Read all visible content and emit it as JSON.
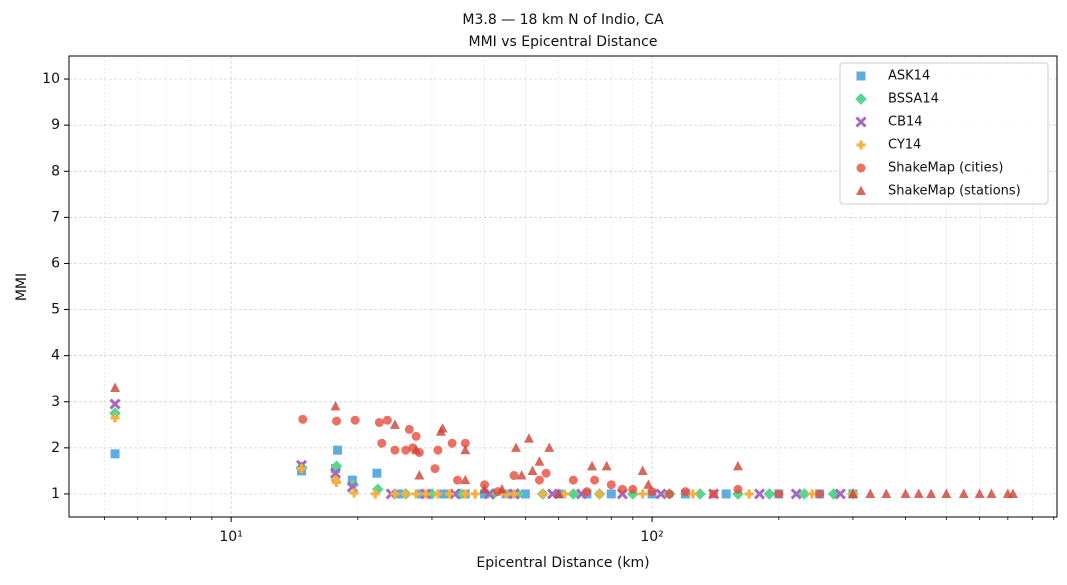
{
  "chart_data": {
    "type": "scatter",
    "title": "M3.8 — 18 km N of Indio, CA",
    "subtitle": "MMI vs Epicentral Distance",
    "x_label": "Epicentral Distance (km)",
    "y_label": "MMI",
    "x_scale": "log",
    "xlim": [
      4.12,
      916
    ],
    "ylim": [
      0.5,
      10.5
    ],
    "xticks": [
      {
        "value": 10,
        "label": "10¹"
      },
      {
        "value": 100,
        "label": "10²"
      }
    ],
    "xminor_ticks": [
      5,
      6,
      7,
      8,
      9,
      20,
      30,
      40,
      50,
      60,
      70,
      80,
      90,
      200,
      300,
      400,
      500,
      600,
      700,
      800,
      900
    ],
    "yticks": [
      1,
      2,
      3,
      4,
      5,
      6,
      7,
      8,
      9,
      10
    ],
    "grid": true,
    "legend": "upper right",
    "series": [
      {
        "name": "ASK14",
        "color": "#5dade2",
        "marker": "square",
        "x": [
          5.3,
          14.7,
          17.7,
          17.9,
          19.4,
          22.2,
          25,
          28,
          32,
          36,
          40,
          45,
          50,
          60,
          70,
          80,
          100,
          120,
          150,
          200,
          250,
          300
        ],
        "y": [
          1.87,
          1.5,
          1.55,
          1.95,
          1.3,
          1.45,
          1,
          1,
          1,
          1,
          1,
          1,
          1,
          1,
          1,
          1,
          1,
          1,
          1,
          1,
          1,
          1
        ]
      },
      {
        "name": "BSSA14",
        "color": "#58d68d",
        "marker": "diamond",
        "x": [
          5.3,
          14.7,
          17.8,
          19.5,
          22.3,
          26,
          30,
          35,
          42,
          48,
          55,
          65,
          75,
          90,
          110,
          130,
          160,
          190,
          230,
          270,
          300
        ],
        "y": [
          2.75,
          1.58,
          1.6,
          1.2,
          1.1,
          1,
          1,
          1,
          1,
          1,
          1,
          1,
          1,
          1,
          1,
          1,
          1,
          1,
          1,
          1,
          1
        ]
      },
      {
        "name": "CB14",
        "color": "#a569bd",
        "marker": "x",
        "x": [
          5.3,
          14.7,
          17.7,
          19.4,
          24,
          29,
          34,
          41,
          47,
          58,
          68,
          85,
          105,
          140,
          180,
          220,
          280
        ],
        "y": [
          2.95,
          1.62,
          1.45,
          1.15,
          1,
          1,
          1,
          1,
          1,
          1,
          1,
          1,
          1,
          1,
          1,
          1,
          1
        ]
      },
      {
        "name": "CY14",
        "color": "#f5b041",
        "marker": "plus",
        "x": [
          5.3,
          14.7,
          17.7,
          17.8,
          19.6,
          22,
          24.5,
          26,
          27.5,
          29,
          31,
          33,
          36,
          38,
          45,
          47,
          55,
          62,
          75,
          95,
          125,
          170,
          240,
          300
        ],
        "y": [
          2.65,
          1.55,
          1.3,
          1.25,
          1.02,
          1,
          1,
          1,
          1,
          1,
          1,
          1,
          1,
          1,
          1,
          1,
          1,
          1,
          1,
          1,
          1,
          1,
          1,
          1
        ]
      },
      {
        "name": "ShakeMap (cities)",
        "color": "#e74c3c",
        "marker": "circle",
        "x": [
          14.8,
          17.8,
          19.7,
          22.5,
          23.5,
          22.8,
          24.5,
          26,
          26.5,
          27,
          27.5,
          28,
          30.5,
          31,
          33.5,
          36,
          34.5,
          40,
          43,
          47,
          54,
          56,
          65,
          73,
          80,
          90,
          100,
          120,
          160,
          200,
          250,
          70,
          85,
          110,
          140
        ],
        "y": [
          2.62,
          2.58,
          2.6,
          2.55,
          2.6,
          2.1,
          1.95,
          1.95,
          2.4,
          2.0,
          2.25,
          1.9,
          1.55,
          1.95,
          2.1,
          2.1,
          1.3,
          1.2,
          1.05,
          1.4,
          1.3,
          1.45,
          1.3,
          1.3,
          1.2,
          1.1,
          1.05,
          1.05,
          1.1,
          1,
          1,
          1.05,
          1.1,
          1,
          1
        ]
      },
      {
        "name": "ShakeMap (stations)",
        "color": "#cb4335",
        "marker": "triangle",
        "x": [
          5.3,
          17.7,
          24.5,
          27.5,
          28,
          31.5,
          31.8,
          36,
          36,
          40,
          44,
          47.5,
          49,
          51,
          52,
          54,
          57,
          60,
          72,
          78,
          95,
          98,
          160,
          300,
          330,
          360,
          400,
          430,
          460,
          500,
          550,
          600,
          640,
          700,
          720
        ],
        "y": [
          3.3,
          2.9,
          2.5,
          1.95,
          1.4,
          2.35,
          2.42,
          1.95,
          1.3,
          1.1,
          1.1,
          2.0,
          1.4,
          2.2,
          1.5,
          1.7,
          2.0,
          1.0,
          1.6,
          1.6,
          1.5,
          1.2,
          1.6,
          1,
          1,
          1,
          1,
          1,
          1,
          1,
          1,
          1,
          1,
          1,
          1
        ]
      }
    ]
  }
}
